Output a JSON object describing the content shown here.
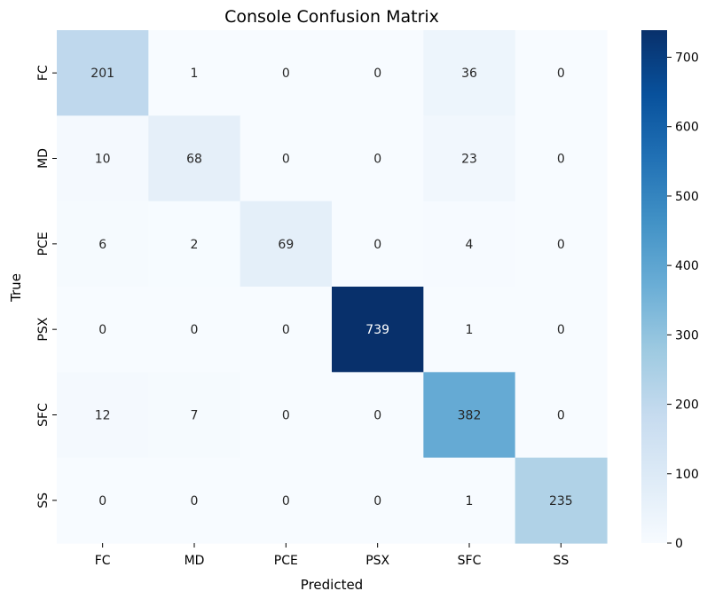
{
  "chart_data": {
    "type": "heatmap",
    "title": "Console Confusion Matrix",
    "xlabel": "Predicted",
    "ylabel": "True",
    "x_categories": [
      "FC",
      "MD",
      "PCE",
      "PSX",
      "SFC",
      "SS"
    ],
    "y_categories": [
      "FC",
      "MD",
      "PCE",
      "PSX",
      "SFC",
      "SS"
    ],
    "values": [
      [
        201,
        1,
        0,
        0,
        36,
        0
      ],
      [
        10,
        68,
        0,
        0,
        23,
        0
      ],
      [
        6,
        2,
        69,
        0,
        4,
        0
      ],
      [
        0,
        0,
        0,
        739,
        1,
        0
      ],
      [
        12,
        7,
        0,
        0,
        382,
        0
      ],
      [
        0,
        0,
        0,
        0,
        1,
        235
      ]
    ],
    "colormap": "Blues",
    "colorbar": {
      "min": 0,
      "max": 739,
      "ticks": [
        0,
        100,
        200,
        300,
        400,
        500,
        600,
        700
      ]
    },
    "annotated": true,
    "grid": false
  }
}
